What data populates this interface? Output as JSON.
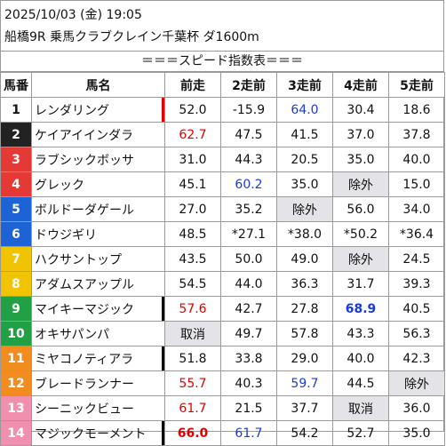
{
  "header": {
    "datetime": "2025/10/03 (金) 19:05",
    "race": "船橋9R 乗馬クラブクレイン千葉杯 ダ1600m"
  },
  "banner": "＝＝＝スピード指数表＝＝＝",
  "columns": [
    "馬番",
    "馬名",
    "前走",
    "2走前",
    "3走前",
    "4走前",
    "5走前"
  ],
  "rows": [
    {
      "num": "1",
      "name": "レンダリング",
      "vals": [
        "52.0",
        "-15.9",
        "64.0",
        "30.4",
        "18.6"
      ]
    },
    {
      "num": "2",
      "name": "ケイアイインダラ",
      "vals": [
        "62.7",
        "47.5",
        "41.5",
        "37.0",
        "37.8"
      ]
    },
    {
      "num": "3",
      "name": "ラブシックボッサ",
      "vals": [
        "31.0",
        "44.3",
        "20.5",
        "35.0",
        "40.0"
      ]
    },
    {
      "num": "4",
      "name": "グレック",
      "vals": [
        "45.1",
        "60.2",
        "35.0",
        "除外",
        "15.0"
      ]
    },
    {
      "num": "5",
      "name": "ボルドーダゲール",
      "vals": [
        "27.0",
        "35.2",
        "除外",
        "56.0",
        "34.0"
      ]
    },
    {
      "num": "6",
      "name": "ドウジギリ",
      "vals": [
        "48.5",
        "*27.1",
        "*38.0",
        "*50.2",
        "*36.4"
      ]
    },
    {
      "num": "7",
      "name": "ハクサントップ",
      "vals": [
        "43.5",
        "50.0",
        "49.0",
        "除外",
        "24.5"
      ]
    },
    {
      "num": "8",
      "name": "アダムスアップル",
      "vals": [
        "54.5",
        "44.0",
        "36.3",
        "31.7",
        "39.3"
      ]
    },
    {
      "num": "9",
      "name": "マイキーマジック",
      "vals": [
        "57.6",
        "42.7",
        "27.8",
        "68.9",
        "40.5"
      ]
    },
    {
      "num": "10",
      "name": "オキサパンパ",
      "vals": [
        "取消",
        "49.7",
        "57.8",
        "43.3",
        "56.3"
      ]
    },
    {
      "num": "11",
      "name": "ミヤコノティアラ",
      "vals": [
        "51.8",
        "33.8",
        "29.0",
        "40.0",
        "42.3"
      ]
    },
    {
      "num": "12",
      "name": "ブレードランナー",
      "vals": [
        "55.7",
        "40.3",
        "59.7",
        "44.5",
        "除外"
      ]
    },
    {
      "num": "13",
      "name": "シーニックビュー",
      "vals": [
        "61.7",
        "21.5",
        "37.7",
        "取消",
        "36.0"
      ]
    },
    {
      "num": "14",
      "name": "マジックモーメント",
      "vals": [
        "66.0",
        "61.7",
        "54.2",
        "52.7",
        "35.0"
      ]
    }
  ],
  "colors": {
    "waku": [
      "#ffffff",
      "#222222",
      "#e53935",
      "#1e63d6",
      "#f0c400",
      "#22a045",
      "#f28c1e",
      "#f08fae"
    ],
    "red_text": "#e00000",
    "blue_text": "#1a3bdc",
    "gray_cell": "#e3e3e8"
  }
}
